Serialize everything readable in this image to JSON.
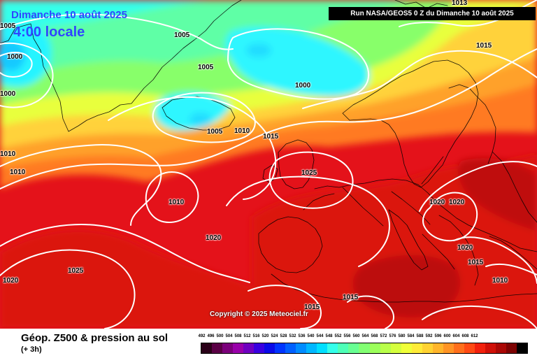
{
  "header": {
    "date": "Dimanche 10 août 2025",
    "time": "4:00 locale",
    "run": "Run NASA/GEOS5 0 Z du Dimanche 10 août 2025"
  },
  "copyright": "Copyright © 2025 Meteociel.fr",
  "footer": {
    "title": "Géop. Z500 & pression au sol",
    "subtitle": "(+ 3h)"
  },
  "legend": {
    "labels": [
      "492",
      "496",
      "500",
      "504",
      "508",
      "512",
      "516",
      "520",
      "524",
      "528",
      "532",
      "536",
      "540",
      "544",
      "548",
      "552",
      "556",
      "560",
      "564",
      "568",
      "572",
      "576",
      "580",
      "584",
      "588",
      "592",
      "596",
      "600",
      "604",
      "608",
      "612"
    ],
    "colors": [
      "#2a0018",
      "#5a0045",
      "#7b007b",
      "#9900aa",
      "#6f00c0",
      "#3a00e0",
      "#0a0ae8",
      "#0035ff",
      "#0060ff",
      "#008cff",
      "#00b7ff",
      "#00dfff",
      "#34ffea",
      "#4effb7",
      "#68ff93",
      "#82ff73",
      "#9cff5b",
      "#b9ff4a",
      "#d5ff3e",
      "#f0ff39",
      "#ffeb38",
      "#ffd232",
      "#ffb52b",
      "#ff9425",
      "#ff6f1c",
      "#ff4a14",
      "#f2210d",
      "#d01008",
      "#aa0805",
      "#7d0303",
      "#000000"
    ]
  },
  "isobar_labels": [
    "1005",
    "1000",
    "1000",
    "1005",
    "1005",
    "1000",
    "1005",
    "1010",
    "1015",
    "1015",
    "1013",
    "1010",
    "1010",
    "1025",
    "1010",
    "1020",
    "1020",
    "1020",
    "1020",
    "1015",
    "1010",
    "1025",
    "1020",
    "1015",
    "1015"
  ]
}
